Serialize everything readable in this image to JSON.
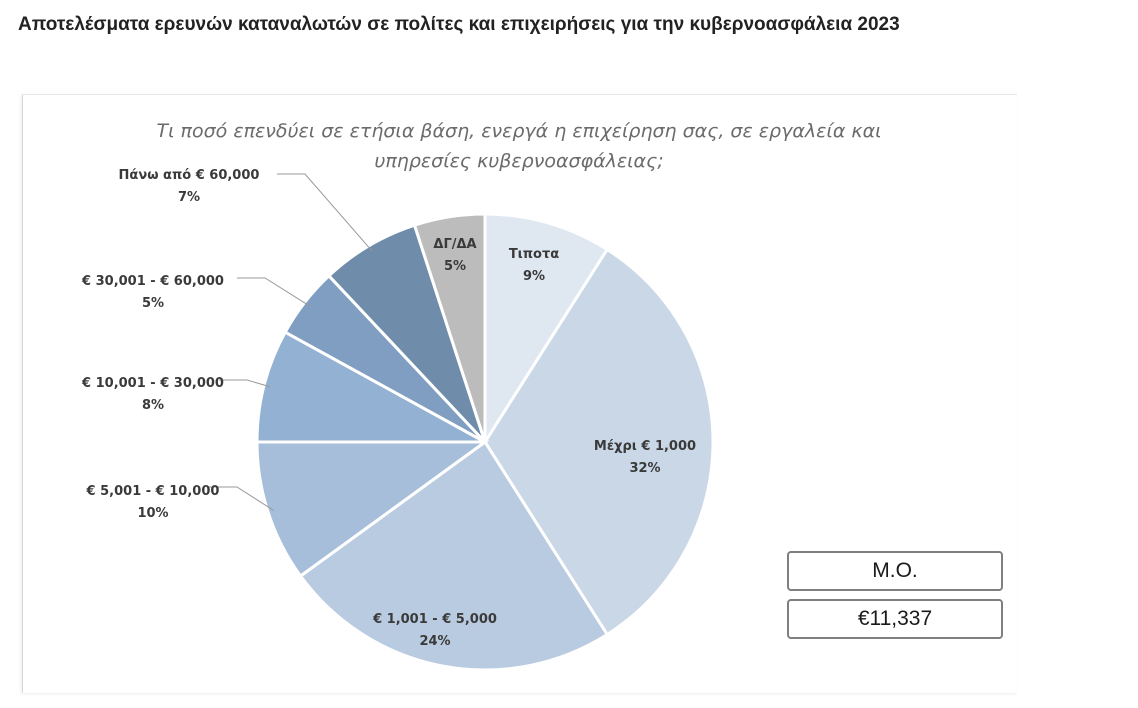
{
  "page_title": "Αποτελέσματα ερευνών καταναλωτών σε πολίτες και επιχειρήσεις για την κυβερνοασφάλεια 2023",
  "summary": {
    "label": "Μ.Ο.",
    "value": "€11,337"
  },
  "chart_data": {
    "type": "pie",
    "title_lines": [
      "Τι ποσό επενδύει σε ετήσια βάση, ενεργά η επιχείρηση σας, σε εργαλεία και",
      "υπηρεσίες κυβερνοασφάλειας;"
    ],
    "slices": [
      {
        "label": "Τιποτα",
        "value": 9,
        "value_label": "9%",
        "color": "#dfe7f1"
      },
      {
        "label": "Μέχρι € 1,000",
        "value": 32,
        "value_label": "32%",
        "color": "#c9d7e7"
      },
      {
        "label": "€ 1,001 - € 5,000",
        "value": 24,
        "value_label": "24%",
        "color": "#b9cbe0"
      },
      {
        "label": "€ 5,001 - € 10,000",
        "value": 10,
        "value_label": "10%",
        "color": "#a6bed9"
      },
      {
        "label": "€ 10,001 - € 30,000",
        "value": 8,
        "value_label": "8%",
        "color": "#93b1d2"
      },
      {
        "label": "€ 30,001 - € 60,000",
        "value": 5,
        "value_label": "5%",
        "color": "#7f9ec1"
      },
      {
        "label": "Πάνω από € 60,000",
        "value": 7,
        "value_label": "7%",
        "color": "#6f8cab"
      },
      {
        "label": "ΔΓ/ΔΑ",
        "value": 5,
        "value_label": "5%",
        "color": "#bcbcbc"
      }
    ],
    "legend": "none"
  }
}
